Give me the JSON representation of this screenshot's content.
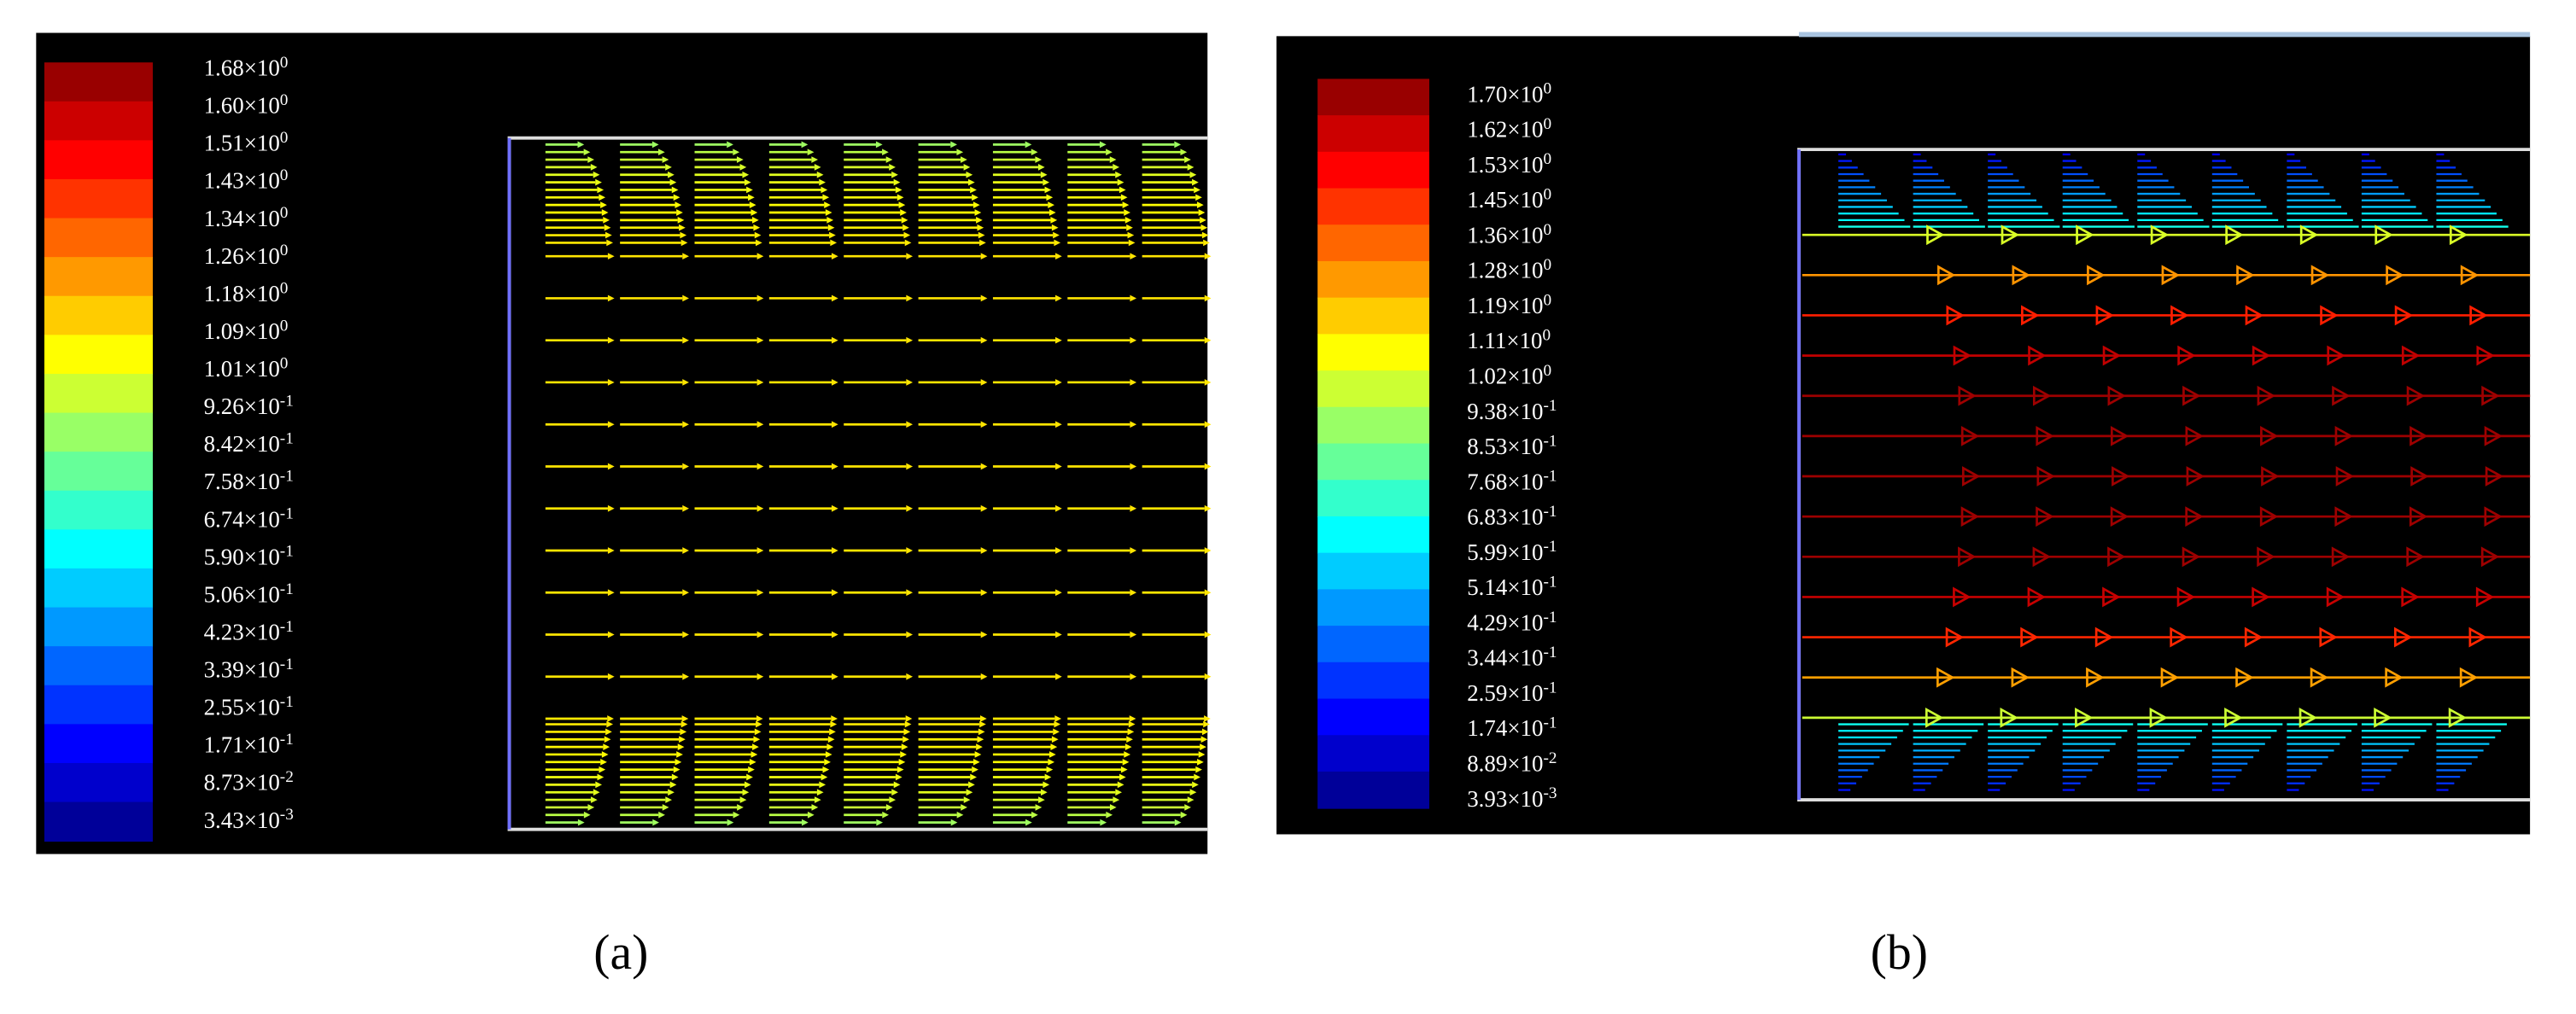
{
  "panels": [
    {
      "label": "(a)",
      "legend": [
        {
          "base": "1.68×10",
          "exp": "0"
        },
        {
          "base": "1.60×10",
          "exp": "0"
        },
        {
          "base": "1.51×10",
          "exp": "0"
        },
        {
          "base": "1.43×10",
          "exp": "0"
        },
        {
          "base": "1.34×10",
          "exp": "0"
        },
        {
          "base": "1.26×10",
          "exp": "0"
        },
        {
          "base": "1.18×10",
          "exp": "0"
        },
        {
          "base": "1.09×10",
          "exp": "0"
        },
        {
          "base": "1.01×10",
          "exp": "0"
        },
        {
          "base": "9.26×10",
          "exp": "-1"
        },
        {
          "base": "8.42×10",
          "exp": "-1"
        },
        {
          "base": "7.58×10",
          "exp": "-1"
        },
        {
          "base": "6.74×10",
          "exp": "-1"
        },
        {
          "base": "5.90×10",
          "exp": "-1"
        },
        {
          "base": "5.06×10",
          "exp": "-1"
        },
        {
          "base": "4.23×10",
          "exp": "-1"
        },
        {
          "base": "3.39×10",
          "exp": "-1"
        },
        {
          "base": "2.55×10",
          "exp": "-1"
        },
        {
          "base": "1.71×10",
          "exp": "-1"
        },
        {
          "base": "8.73×10",
          "exp": "-2"
        },
        {
          "base": "3.43×10",
          "exp": "-3"
        }
      ]
    },
    {
      "label": "(b)",
      "legend": [
        {
          "base": "1.70×10",
          "exp": "0"
        },
        {
          "base": "1.62×10",
          "exp": "0"
        },
        {
          "base": "1.53×10",
          "exp": "0"
        },
        {
          "base": "1.45×10",
          "exp": "0"
        },
        {
          "base": "1.36×10",
          "exp": "0"
        },
        {
          "base": "1.28×10",
          "exp": "0"
        },
        {
          "base": "1.19×10",
          "exp": "0"
        },
        {
          "base": "1.11×10",
          "exp": "0"
        },
        {
          "base": "1.02×10",
          "exp": "0"
        },
        {
          "base": "9.38×10",
          "exp": "-1"
        },
        {
          "base": "8.53×10",
          "exp": "-1"
        },
        {
          "base": "7.68×10",
          "exp": "-1"
        },
        {
          "base": "6.83×10",
          "exp": "-1"
        },
        {
          "base": "5.99×10",
          "exp": "-1"
        },
        {
          "base": "5.14×10",
          "exp": "-1"
        },
        {
          "base": "4.29×10",
          "exp": "-1"
        },
        {
          "base": "3.44×10",
          "exp": "-1"
        },
        {
          "base": "2.59×10",
          "exp": "-1"
        },
        {
          "base": "1.74×10",
          "exp": "-1"
        },
        {
          "base": "8.89×10",
          "exp": "-2"
        },
        {
          "base": "3.93×10",
          "exp": "-3"
        }
      ]
    }
  ]
}
